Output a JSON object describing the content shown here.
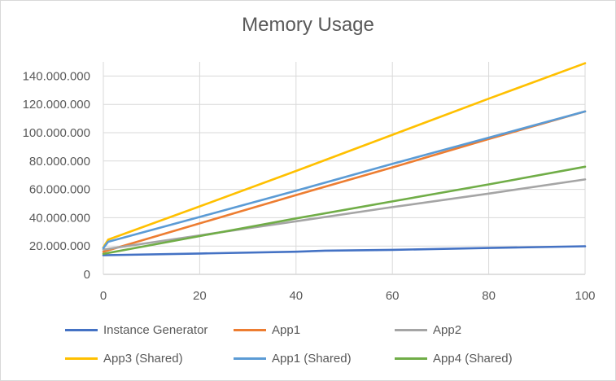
{
  "chart_data": {
    "type": "line",
    "title": "Memory Usage",
    "xlabel": "",
    "ylabel": "",
    "xlim": [
      0,
      100
    ],
    "ylim": [
      0,
      150000000
    ],
    "x_ticks": [
      0,
      20,
      40,
      60,
      80,
      100
    ],
    "x_tick_labels": [
      "0",
      "20",
      "40",
      "60",
      "80",
      "100"
    ],
    "y_ticks": [
      0,
      20000000,
      40000000,
      60000000,
      80000000,
      100000000,
      120000000,
      140000000
    ],
    "y_tick_labels": [
      "0",
      "20.000.000",
      "40.000.000",
      "60.000.000",
      "80.000.000",
      "100.000.000",
      "120.000.000",
      "140.000.000"
    ],
    "grid": true,
    "legend_position": "bottom",
    "series": [
      {
        "name": "Instance Generator",
        "color": "#4472c4",
        "x": [
          0,
          20,
          40,
          46,
          60,
          80,
          100
        ],
        "y": [
          13500000,
          14700000,
          16000000,
          16700000,
          17300000,
          18600000,
          19800000
        ]
      },
      {
        "name": "App1",
        "color": "#ed7d31",
        "x": [
          0,
          20,
          40,
          60,
          80,
          100
        ],
        "y": [
          16000000,
          36000000,
          56000000,
          75500000,
          95500000,
          115000000
        ]
      },
      {
        "name": "App2",
        "color": "#a5a5a5",
        "x": [
          0,
          20,
          40,
          60,
          80,
          100
        ],
        "y": [
          17500000,
          27500000,
          37500000,
          47500000,
          57000000,
          67000000
        ]
      },
      {
        "name": "App3 (Shared)",
        "color": "#ffc000",
        "x": [
          0,
          1,
          20,
          40,
          60,
          80,
          100
        ],
        "y": [
          19000000,
          24500000,
          48000000,
          73000000,
          98500000,
          124000000,
          149000000
        ]
      },
      {
        "name": "App1 (Shared)",
        "color": "#5b9bd5",
        "x": [
          0,
          1,
          20,
          40,
          60,
          80,
          100
        ],
        "y": [
          18500000,
          23000000,
          40500000,
          59000000,
          78000000,
          96500000,
          115000000
        ]
      },
      {
        "name": "App4 (Shared)",
        "color": "#70ad47",
        "x": [
          0,
          20,
          40,
          60,
          80,
          100
        ],
        "y": [
          14500000,
          27000000,
          39500000,
          51500000,
          63500000,
          76000000
        ]
      }
    ]
  }
}
